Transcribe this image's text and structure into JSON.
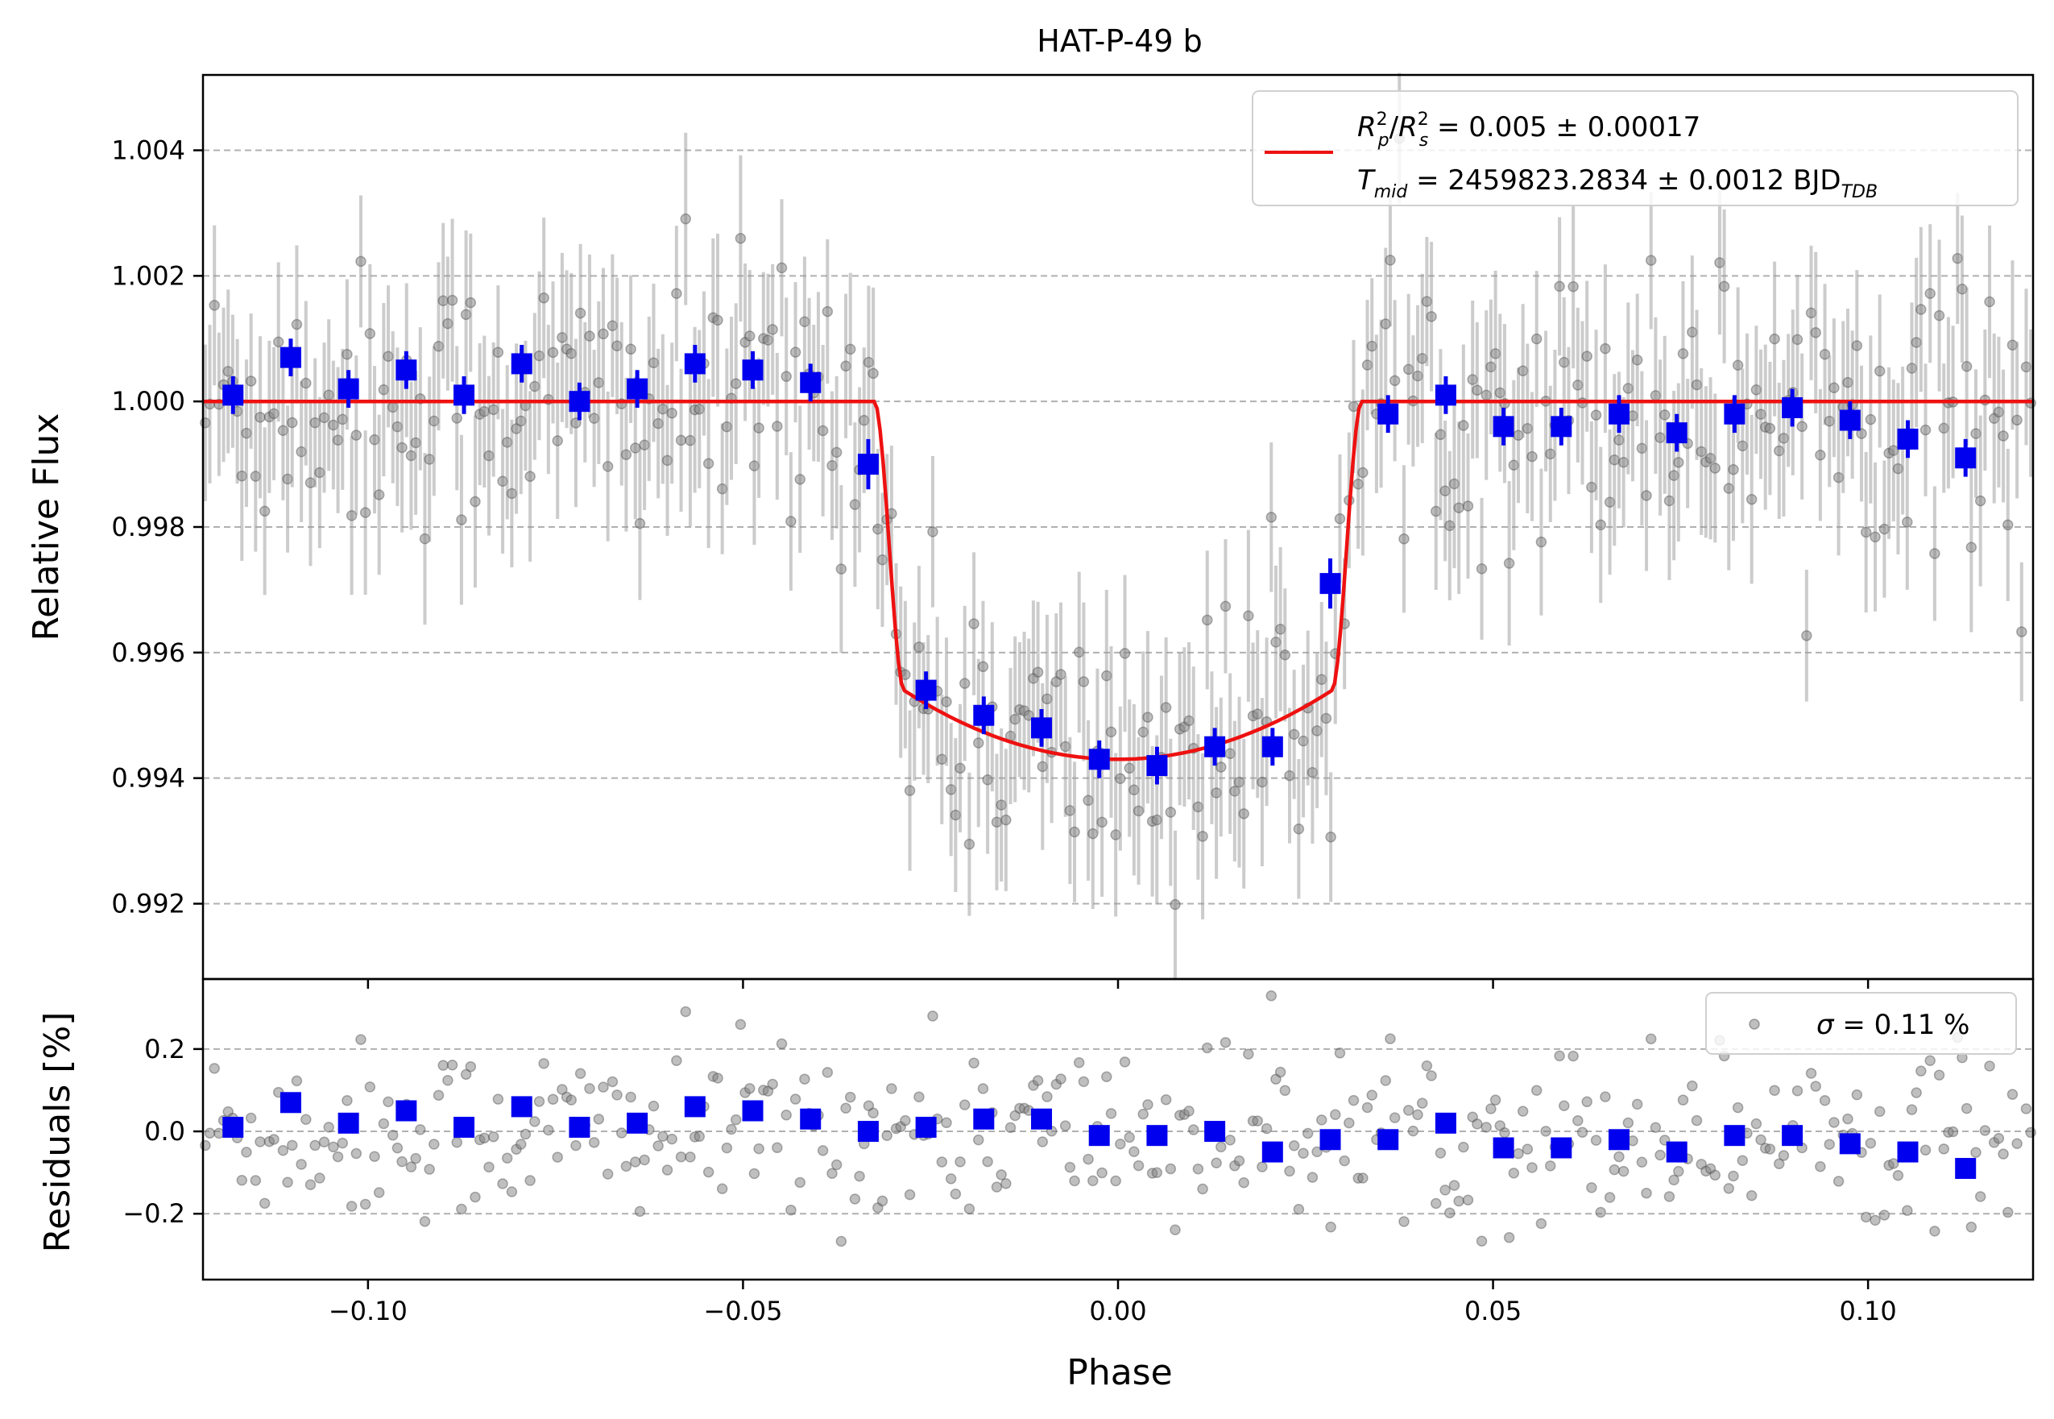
{
  "chart_data": [
    {
      "type": "scatter",
      "title": "HAT-P-49 b",
      "xlabel": "",
      "ylabel": "Relative Flux",
      "xlim": [
        -0.122,
        0.122
      ],
      "ylim": [
        0.9908,
        1.0052
      ],
      "xticks": [
        -0.1,
        -0.05,
        0.0,
        0.05,
        0.1
      ],
      "yticks": [
        0.992,
        0.994,
        0.996,
        0.998,
        1.0,
        1.002,
        1.004
      ],
      "ytick_labels": [
        "0.992",
        "0.994",
        "0.996",
        "0.998",
        "1.000",
        "1.002",
        "1.004"
      ],
      "grid": "y-dashed",
      "legend_position": "top-right",
      "legend": {
        "line1_sym": "R",
        "line1_sub_a": "p",
        "line1_sup_a": "2",
        "line1_slash": "/",
        "line1_sub_b": "s",
        "line1_sup_b": "2",
        "line1_value": " = 0.005 ± 0.00017",
        "line2_sym": "T",
        "line2_sub": "mid",
        "line2_value": " = 2459823.2834 ± 0.0012 BJD",
        "line2_unit_sub": "TDB",
        "model_color": "#ee1111"
      },
      "model": {
        "name": "",
        "depth": 0.0057,
        "t_ingress_start": -0.0325,
        "t_ingress_end": -0.0285,
        "t_egress_start": 0.0285,
        "t_egress_end": 0.0325,
        "limb_darkening": 0.25
      },
      "binned": {
        "color": "#0000ee",
        "x": [
          -0.118,
          -0.1103,
          -0.1026,
          -0.0949,
          -0.0872,
          -0.0795,
          -0.0718,
          -0.0641,
          -0.0564,
          -0.0487,
          -0.041,
          -0.0333,
          -0.0256,
          -0.0179,
          -0.0102,
          -0.0025,
          0.0052,
          0.0129,
          0.0206,
          0.0283,
          0.036,
          0.0437,
          0.0514,
          0.0591,
          0.0668,
          0.0745,
          0.0822,
          0.0899,
          0.0976,
          0.1053,
          0.113
        ],
        "y": [
          1.0001,
          1.0007,
          1.0002,
          1.0005,
          1.0001,
          1.0006,
          1.0,
          1.0002,
          1.0006,
          1.0005,
          1.0003,
          0.999,
          0.9954,
          0.995,
          0.9948,
          0.9943,
          0.9942,
          0.9945,
          0.9945,
          0.9971,
          0.9998,
          1.0001,
          0.9996,
          0.9996,
          0.9998,
          0.9995,
          0.9998,
          0.9999,
          0.9997,
          0.9994,
          0.9991
        ],
        "yerr": [
          0.0003,
          0.0003,
          0.0003,
          0.0003,
          0.0003,
          0.0003,
          0.0003,
          0.0003,
          0.0003,
          0.0003,
          0.0003,
          0.0004,
          0.0003,
          0.0003,
          0.0003,
          0.0003,
          0.0003,
          0.0003,
          0.0003,
          0.0004,
          0.0003,
          0.0003,
          0.0003,
          0.0003,
          0.0003,
          0.0003,
          0.0003,
          0.0003,
          0.0003,
          0.0003,
          0.0003
        ]
      },
      "raw": {
        "color": "#7f7f7f",
        "count": 400,
        "scatter_sigma": 0.0011,
        "errbar_sigma": 0.0012
      }
    },
    {
      "type": "scatter",
      "title": "",
      "xlabel": "Phase",
      "ylabel": "Residuals [%]",
      "xlim": [
        -0.122,
        0.122
      ],
      "ylim": [
        -0.36,
        0.37
      ],
      "xticks": [
        -0.1,
        -0.05,
        0.0,
        0.05,
        0.1
      ],
      "xtick_labels": [
        "−0.10",
        "−0.05",
        "0.00",
        "0.05",
        "0.10"
      ],
      "yticks": [
        -0.2,
        0.0,
        0.2
      ],
      "ytick_labels": [
        "−0.2",
        "0.0",
        "0.2"
      ],
      "grid": "y-dashed",
      "legend_position": "top-right",
      "legend": {
        "sigma_sym": "σ",
        "sigma_value": " = 0.11 %"
      },
      "binned": {
        "color": "#0000ee",
        "x": [
          -0.118,
          -0.1103,
          -0.1026,
          -0.0949,
          -0.0872,
          -0.0795,
          -0.0718,
          -0.0641,
          -0.0564,
          -0.0487,
          -0.041,
          -0.0333,
          -0.0256,
          -0.0179,
          -0.0102,
          -0.0025,
          0.0052,
          0.0129,
          0.0206,
          0.0283,
          0.036,
          0.0437,
          0.0514,
          0.0591,
          0.0668,
          0.0745,
          0.0822,
          0.0899,
          0.0976,
          0.1053,
          0.113
        ],
        "y": [
          0.01,
          0.07,
          0.02,
          0.05,
          0.01,
          0.06,
          0.01,
          0.02,
          0.06,
          0.05,
          0.03,
          0.0,
          0.01,
          0.03,
          0.03,
          -0.01,
          -0.01,
          0.0,
          -0.05,
          -0.02,
          -0.02,
          0.02,
          -0.04,
          -0.04,
          -0.02,
          -0.05,
          -0.01,
          -0.01,
          -0.03,
          -0.05,
          -0.09
        ]
      },
      "raw": {
        "color": "#7f7f7f",
        "count": 400,
        "scatter_sigma": 0.11
      }
    }
  ]
}
